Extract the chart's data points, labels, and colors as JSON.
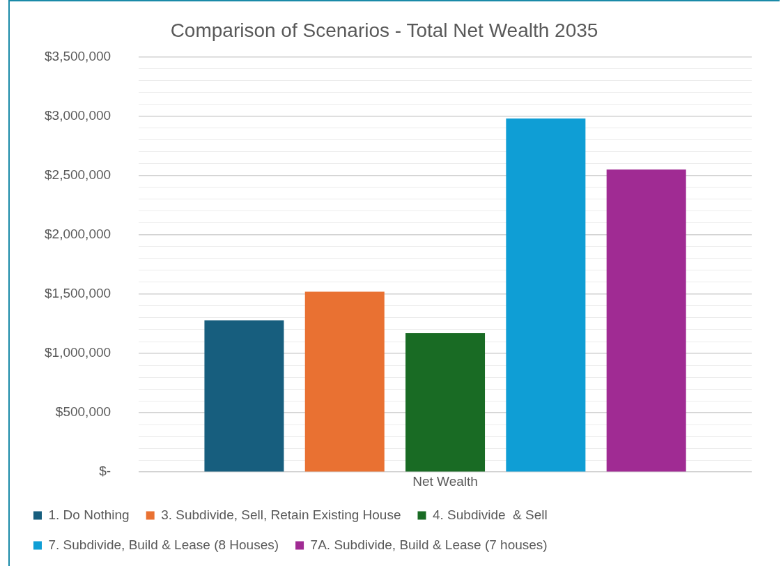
{
  "chart_data": {
    "type": "bar",
    "title": "Comparison of Scenarios - Total Net Wealth 2035",
    "categories": [
      "Net Wealth"
    ],
    "series": [
      {
        "name": "1. Do Nothing",
        "color": "#175e7e",
        "values": [
          1280000
        ]
      },
      {
        "name": "3. Subdivide, Sell, Retain Existing House",
        "color": "#e97132",
        "values": [
          1520000
        ]
      },
      {
        "name": "4. Subdivide  & Sell",
        "color": "#196b24",
        "values": [
          1170000
        ]
      },
      {
        "name": "7. Subdivide, Build & Lease (8 Houses)",
        "color": "#0f9ed5",
        "values": [
          2980000
        ]
      },
      {
        "name": "7A. Subdivide, Build & Lease (7 houses)",
        "color": "#a02b93",
        "values": [
          2550000
        ]
      }
    ],
    "ylim": [
      0,
      3500000
    ],
    "yticks": [
      {
        "value": 0,
        "label": "$-"
      },
      {
        "value": 100000,
        "label": null
      },
      {
        "value": 200000,
        "label": null
      },
      {
        "value": 300000,
        "label": null
      },
      {
        "value": 400000,
        "label": null
      },
      {
        "value": 500000,
        "label": "$500,000"
      },
      {
        "value": 600000,
        "label": null
      },
      {
        "value": 700000,
        "label": null
      },
      {
        "value": 800000,
        "label": null
      },
      {
        "value": 900000,
        "label": null
      },
      {
        "value": 1000000,
        "label": "$1,000,000"
      },
      {
        "value": 1100000,
        "label": null
      },
      {
        "value": 1200000,
        "label": null
      },
      {
        "value": 1300000,
        "label": null
      },
      {
        "value": 1400000,
        "label": null
      },
      {
        "value": 1500000,
        "label": "$1,500,000"
      },
      {
        "value": 1600000,
        "label": null
      },
      {
        "value": 1700000,
        "label": null
      },
      {
        "value": 1800000,
        "label": null
      },
      {
        "value": 1900000,
        "label": null
      },
      {
        "value": 2000000,
        "label": "$2,000,000"
      },
      {
        "value": 2100000,
        "label": null
      },
      {
        "value": 2200000,
        "label": null
      },
      {
        "value": 2300000,
        "label": null
      },
      {
        "value": 2400000,
        "label": null
      },
      {
        "value": 2500000,
        "label": "$2,500,000"
      },
      {
        "value": 2600000,
        "label": null
      },
      {
        "value": 2700000,
        "label": null
      },
      {
        "value": 2800000,
        "label": null
      },
      {
        "value": 2900000,
        "label": null
      },
      {
        "value": 3000000,
        "label": "$3,000,000"
      },
      {
        "value": 3100000,
        "label": null
      },
      {
        "value": 3200000,
        "label": null
      },
      {
        "value": 3300000,
        "label": null
      },
      {
        "value": 3400000,
        "label": null
      },
      {
        "value": 3500000,
        "label": "$3,500,000"
      }
    ],
    "grid": "y",
    "legend": "bottom"
  }
}
